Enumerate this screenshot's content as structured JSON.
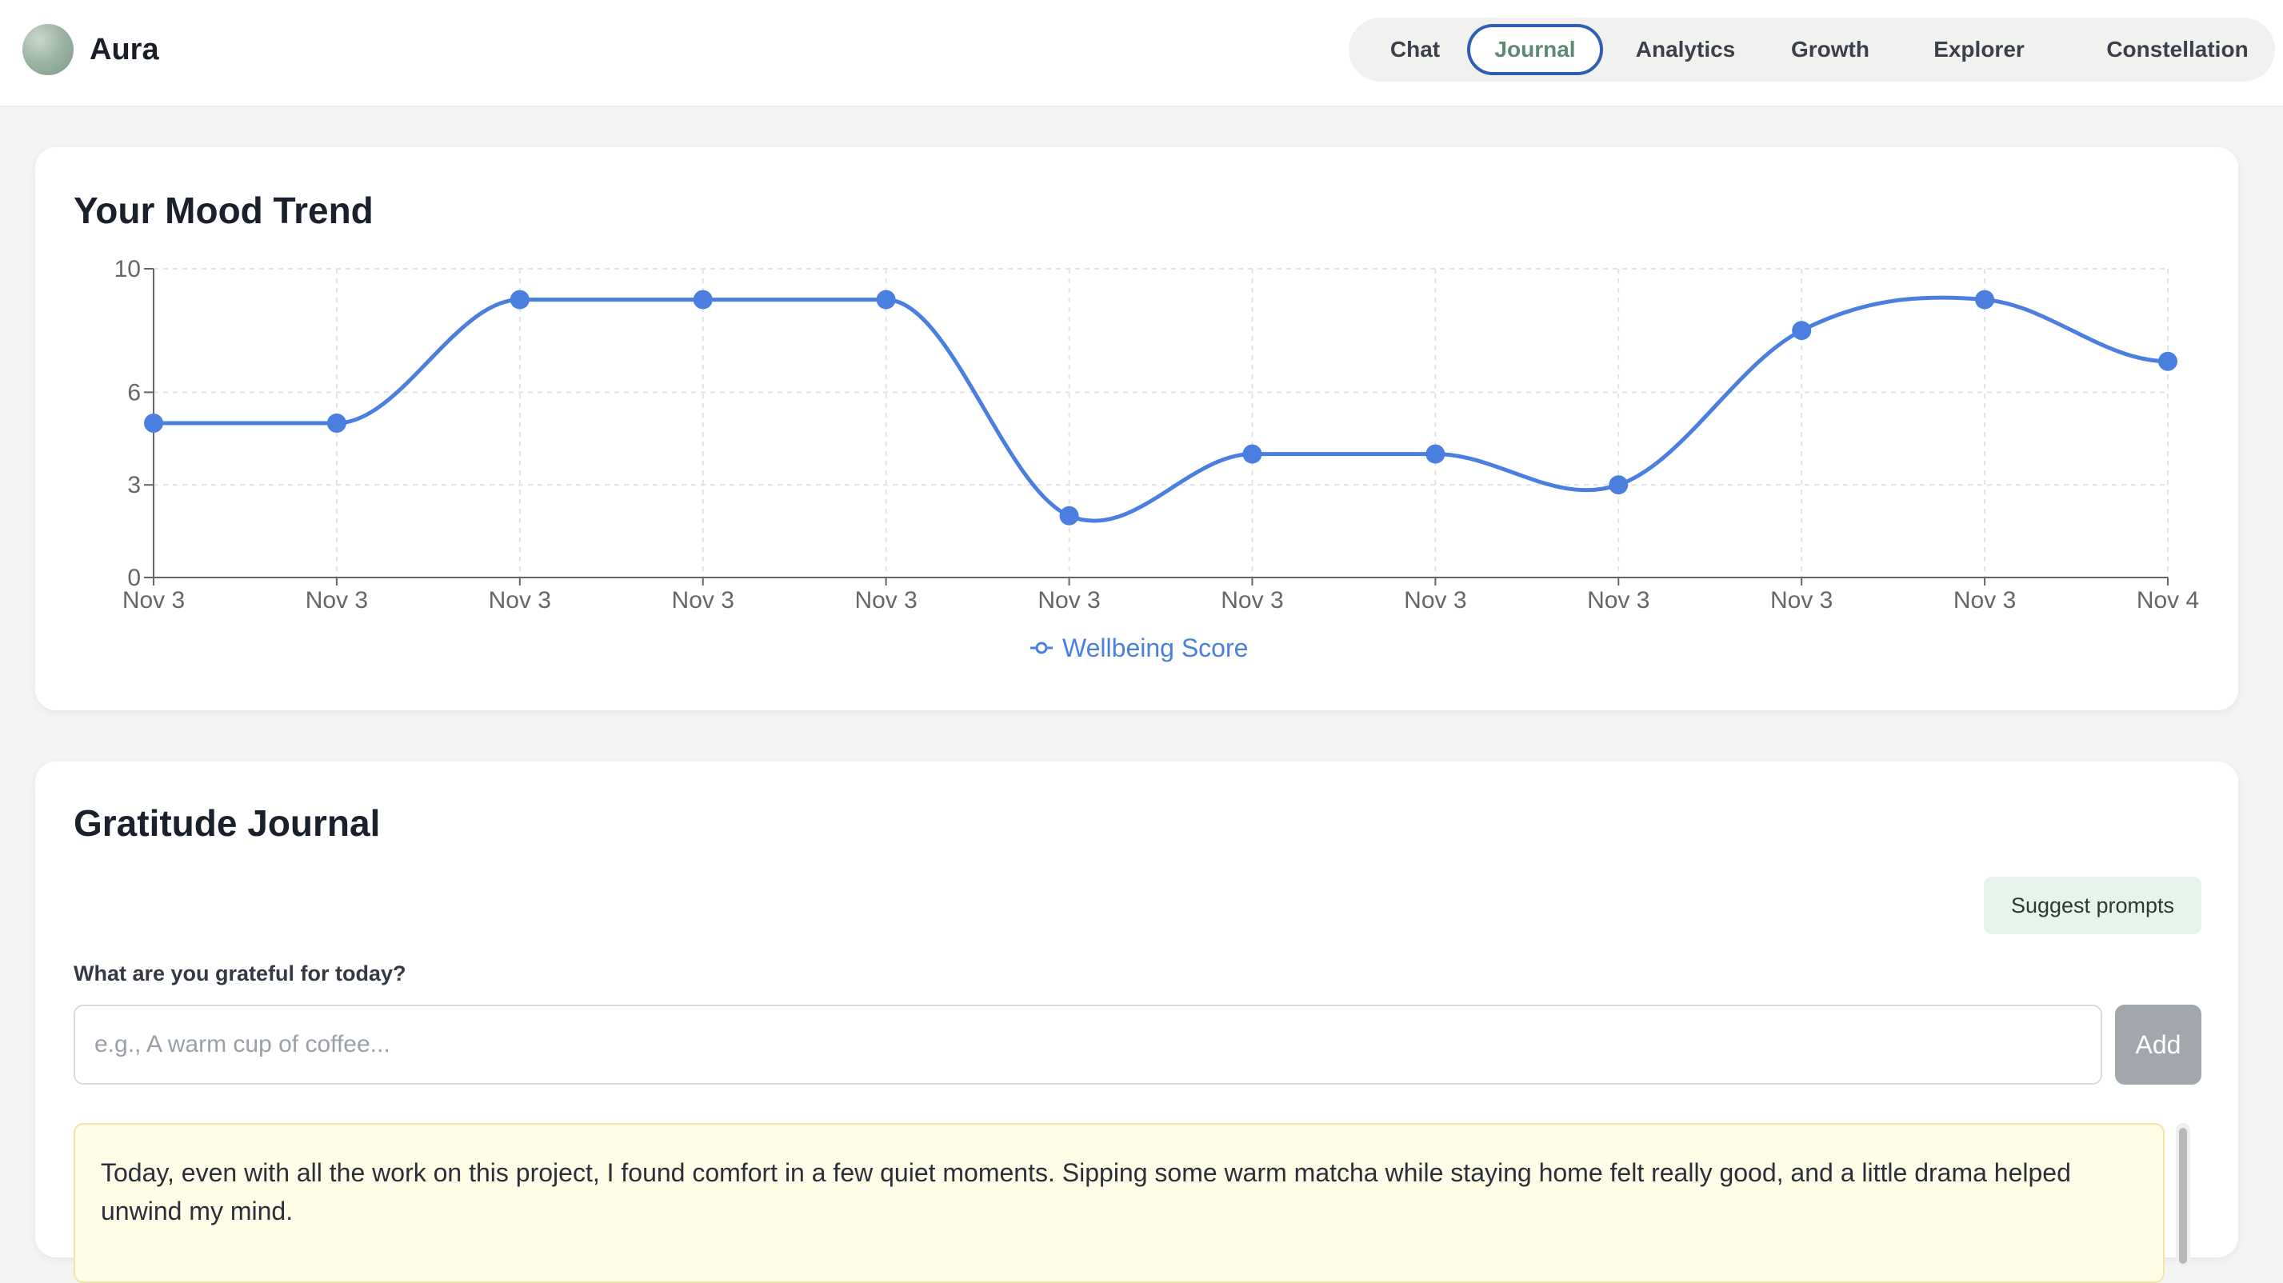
{
  "app": {
    "name": "Aura"
  },
  "nav": {
    "tabs": [
      {
        "label": "Chat",
        "active": false
      },
      {
        "label": "Journal",
        "active": true
      },
      {
        "label": "Analytics",
        "active": false
      },
      {
        "label": "Growth",
        "active": false
      },
      {
        "label": "Explorer",
        "active": false
      },
      {
        "label": "Constellation",
        "active": false
      }
    ]
  },
  "mood_card": {
    "title": "Your Mood Trend"
  },
  "chart_data": {
    "type": "line",
    "title": "",
    "xlabel": "",
    "ylabel": "",
    "categories": [
      "Nov 3",
      "Nov 3",
      "Nov 3",
      "Nov 3",
      "Nov 3",
      "Nov 3",
      "Nov 3",
      "Nov 3",
      "Nov 3",
      "Nov 3",
      "Nov 3",
      "Nov 4"
    ],
    "series": [
      {
        "name": "Wellbeing Score",
        "color": "#4a7fe0",
        "values": [
          5,
          5,
          9,
          9,
          9,
          2,
          4,
          4,
          3,
          8,
          9,
          7
        ]
      }
    ],
    "yticks": [
      0,
      3,
      6,
      10
    ],
    "ylim": [
      0,
      10
    ],
    "grid": true,
    "legend_position": "bottom"
  },
  "journal": {
    "title": "Gratitude Journal",
    "suggest_label": "Suggest prompts",
    "prompt_label": "What are you grateful for today?",
    "input_placeholder": "e.g., A warm cup of coffee...",
    "input_value": "",
    "add_label": "Add",
    "entries": [
      {
        "text": "Today, even with all the work on this project, I found comfort in a few quiet moments. Sipping some warm matcha while staying home felt really good, and a little drama helped unwind my mind."
      }
    ]
  }
}
